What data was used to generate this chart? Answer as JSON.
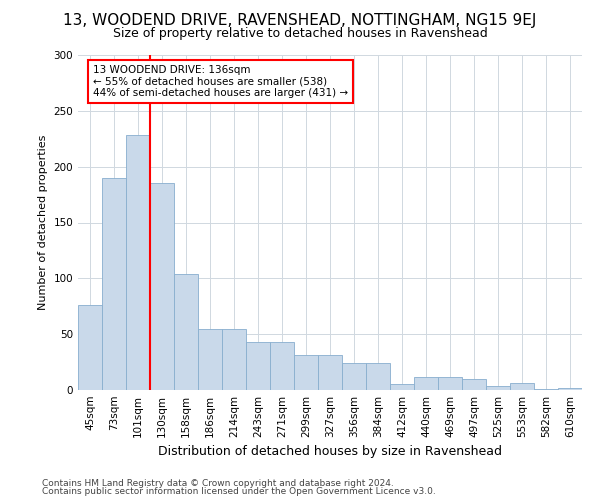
{
  "title1": "13, WOODEND DRIVE, RAVENSHEAD, NOTTINGHAM, NG15 9EJ",
  "title2": "Size of property relative to detached houses in Ravenshead",
  "xlabel": "Distribution of detached houses by size in Ravenshead",
  "ylabel": "Number of detached properties",
  "footer1": "Contains HM Land Registry data © Crown copyright and database right 2024.",
  "footer2": "Contains public sector information licensed under the Open Government Licence v3.0.",
  "annotation_title": "13 WOODEND DRIVE: 136sqm",
  "annotation_line2": "← 55% of detached houses are smaller (538)",
  "annotation_line3": "44% of semi-detached houses are larger (431) →",
  "bar_categories": [
    "45sqm",
    "73sqm",
    "101sqm",
    "130sqm",
    "158sqm",
    "186sqm",
    "214sqm",
    "243sqm",
    "271sqm",
    "299sqm",
    "327sqm",
    "356sqm",
    "384sqm",
    "412sqm",
    "440sqm",
    "469sqm",
    "497sqm",
    "525sqm",
    "553sqm",
    "582sqm",
    "610sqm"
  ],
  "bar_values": [
    76,
    190,
    228,
    185,
    104,
    55,
    55,
    43,
    43,
    31,
    31,
    24,
    24,
    5,
    12,
    12,
    10,
    4,
    6,
    1,
    2
  ],
  "bar_color": "#c9d9ea",
  "bar_edge_color": "#88aece",
  "redline_index": 2.5,
  "ylim": [
    0,
    300
  ],
  "yticks": [
    0,
    50,
    100,
    150,
    200,
    250,
    300
  ],
  "background_color": "#ffffff",
  "grid_color": "#d0d8e0",
  "title1_fontsize": 11,
  "title2_fontsize": 9,
  "xlabel_fontsize": 9,
  "ylabel_fontsize": 8,
  "tick_fontsize": 7.5,
  "footer_fontsize": 6.5
}
